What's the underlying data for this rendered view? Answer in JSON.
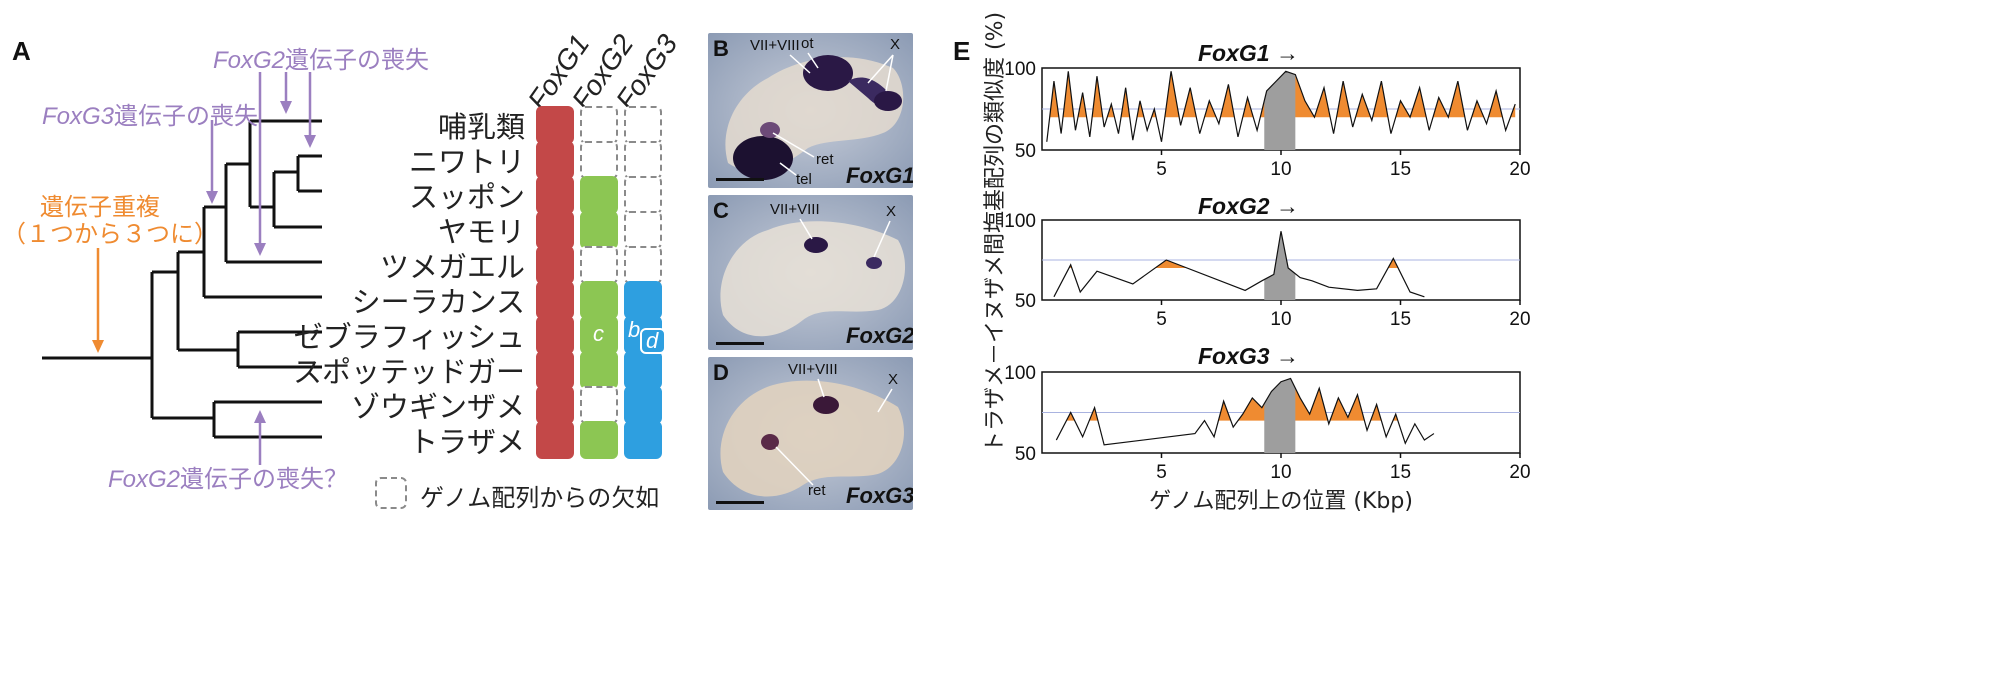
{
  "figure": {
    "panel_a": {
      "letter": "A",
      "gene_columns": [
        "FoxG1",
        "FoxG2",
        "FoxG3"
      ],
      "species": [
        "哺乳類",
        "ニワトリ",
        "スッポン",
        "ヤモリ",
        "ツメガエル",
        "シーラカンス",
        "ゼブラフィッシュ",
        "スポッテッドガー",
        "ゾウギンザメ",
        "トラザメ"
      ],
      "presence": [
        [
          "red",
          "absent",
          "absent"
        ],
        [
          "red",
          "absent",
          "absent"
        ],
        [
          "red",
          "green",
          "absent"
        ],
        [
          "red",
          "green",
          "absent"
        ],
        [
          "red",
          "absent",
          "absent"
        ],
        [
          "red",
          "green",
          "blue"
        ],
        [
          "red",
          "green",
          "blue"
        ],
        [
          "red",
          "green",
          "blue"
        ],
        [
          "red",
          "absent",
          "blue"
        ],
        [
          "red",
          "green",
          "blue"
        ]
      ],
      "zebrafish_labels": {
        "foxg2": "c",
        "foxg3_b": "b",
        "foxg3_d": "d"
      },
      "annotations": {
        "foxg2_loss_italic": "FoxG2",
        "foxg2_loss_rest": "遺伝子の喪失",
        "foxg3_loss_italic": "FoxG3",
        "foxg3_loss_rest": "遺伝子の喪失",
        "dup_line1": "遺伝子重複",
        "dup_line2": "（１つから３つに）",
        "foxg2_loss_q_italic": "FoxG2",
        "foxg2_loss_q_rest": "遺伝子の喪失？"
      },
      "legend": "ゲノム配列からの欠如",
      "colors": {
        "red": "#c34848",
        "green": "#8cc653",
        "blue": "#2e9fe0",
        "purple": "#9b7fc0",
        "orange": "#ef8b31"
      }
    },
    "panel_b": {
      "letter": "B",
      "gene": "FoxG1",
      "labels": {
        "vii_viii": "VII+VIII",
        "ot": "ot",
        "x": "X",
        "ret": "ret",
        "tel": "tel"
      }
    },
    "panel_c": {
      "letter": "C",
      "gene": "FoxG2",
      "labels": {
        "vii_viii": "VII+VIII",
        "x": "X"
      }
    },
    "panel_d": {
      "letter": "D",
      "gene": "FoxG3",
      "labels": {
        "vii_viii": "VII+VIII",
        "x": "X",
        "ret": "ret"
      }
    },
    "panel_e": {
      "letter": "E",
      "ylabel": "トラザメ－イヌザメ間塩基配列の類似度 (%)",
      "xlabel": "ゲノム配列上の位置 (Kbp)",
      "arrow": "→"
    }
  },
  "chart_data": [
    {
      "type": "area",
      "title": "FoxG1",
      "xlabel": "ゲノム配列上の位置 (Kbp)",
      "ylabel": "トラザメ－イヌザメ間塩基配列の類似度 (%)",
      "xlim": [
        0,
        20
      ],
      "ylim": [
        50,
        100
      ],
      "xticks": [
        "5",
        "10",
        "15",
        "20"
      ],
      "yticks": [
        "50",
        "100"
      ],
      "x": [
        0.2,
        0.5,
        0.8,
        1.1,
        1.4,
        1.7,
        2.0,
        2.3,
        2.6,
        2.9,
        3.2,
        3.5,
        3.8,
        4.1,
        4.4,
        4.7,
        5.0,
        5.4,
        5.8,
        6.2,
        6.6,
        7.0,
        7.4,
        7.8,
        8.2,
        8.6,
        9.0,
        9.4,
        9.8,
        10.2,
        10.6,
        11.0,
        11.4,
        11.8,
        12.2,
        12.6,
        13.0,
        13.4,
        13.8,
        14.2,
        14.6,
        15.0,
        15.4,
        15.8,
        16.2,
        16.6,
        17.0,
        17.4,
        17.8,
        18.2,
        18.6,
        19.0,
        19.4,
        19.8
      ],
      "y": [
        55,
        92,
        60,
        98,
        62,
        85,
        58,
        95,
        64,
        78,
        60,
        88,
        56,
        80,
        62,
        75,
        55,
        98,
        65,
        88,
        60,
        80,
        66,
        90,
        58,
        82,
        62,
        86,
        92,
        98,
        96,
        80,
        70,
        88,
        60,
        92,
        64,
        84,
        68,
        92,
        60,
        80,
        70,
        88,
        62,
        82,
        70,
        92,
        62,
        80,
        66,
        86,
        62,
        78
      ]
    },
    {
      "type": "area",
      "title": "FoxG2",
      "xlabel": "ゲノム配列上の位置 (Kbp)",
      "xlim": [
        0,
        20
      ],
      "ylim": [
        50,
        100
      ],
      "xticks": [
        "5",
        "10",
        "15",
        "20"
      ],
      "yticks": [
        "50",
        "100"
      ],
      "x": [
        0.5,
        1.2,
        1.6,
        2.3,
        3.8,
        5.2,
        8.5,
        9.2,
        9.7,
        10.0,
        10.3,
        10.8,
        11.3,
        12.0,
        13.2,
        14.0,
        14.7,
        15.4,
        16.0
      ],
      "y": [
        52,
        72,
        55,
        68,
        60,
        75,
        56,
        62,
        66,
        93,
        70,
        64,
        62,
        58,
        56,
        57,
        76,
        55,
        52
      ]
    },
    {
      "type": "area",
      "title": "FoxG3",
      "xlabel": "ゲノム配列上の位置 (Kbp)",
      "xlim": [
        0,
        20
      ],
      "ylim": [
        50,
        100
      ],
      "xticks": [
        "5",
        "10",
        "15",
        "20"
      ],
      "yticks": [
        "50",
        "100"
      ],
      "x": [
        0.6,
        1.2,
        1.7,
        2.2,
        2.6,
        6.4,
        6.8,
        7.2,
        7.6,
        8.0,
        8.4,
        8.8,
        9.2,
        9.6,
        10.0,
        10.4,
        10.8,
        11.2,
        11.6,
        12.0,
        12.4,
        12.8,
        13.2,
        13.6,
        14.0,
        14.4,
        14.8,
        15.2,
        15.6,
        16.0,
        16.4
      ],
      "y": [
        58,
        75,
        60,
        78,
        55,
        62,
        70,
        60,
        82,
        66,
        74,
        84,
        78,
        88,
        94,
        96,
        84,
        74,
        90,
        68,
        84,
        72,
        86,
        64,
        80,
        60,
        74,
        56,
        68,
        58,
        62
      ]
    }
  ]
}
